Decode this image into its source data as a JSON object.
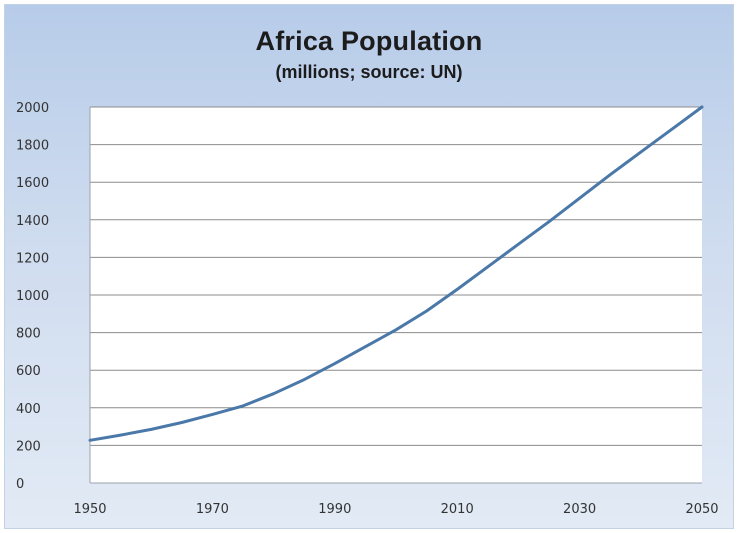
{
  "chart_data": {
    "type": "line",
    "title": "Africa Population",
    "subtitle": "(millions; source: UN)",
    "xlabel": "",
    "ylabel": "",
    "xlim": [
      1950,
      2050
    ],
    "ylim": [
      0,
      2000
    ],
    "x_ticks": [
      1950,
      1970,
      1990,
      2010,
      2030,
      2050
    ],
    "y_ticks": [
      0,
      200,
      400,
      600,
      800,
      1000,
      1200,
      1400,
      1600,
      1800,
      2000
    ],
    "grid": true,
    "line_color": "#4a78a8",
    "series": [
      {
        "x": [
          1950,
          1955,
          1960,
          1965,
          1970,
          1975,
          1980,
          1985,
          1990,
          1995,
          2000,
          2005,
          2010,
          2015,
          2020,
          2025,
          2030,
          2035,
          2040,
          2045,
          2050
        ],
        "values": [
          227,
          255,
          285,
          322,
          365,
          410,
          475,
          550,
          635,
          725,
          815,
          915,
          1030,
          1150,
          1270,
          1390,
          1515,
          1640,
          1760,
          1880,
          2000
        ]
      }
    ]
  }
}
